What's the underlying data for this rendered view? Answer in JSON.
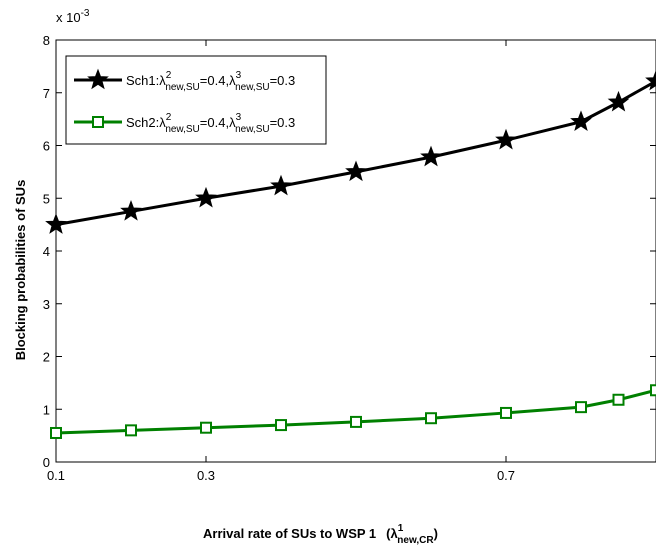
{
  "chart_data": {
    "type": "line",
    "xlabel_main": "Arrival rate of SUs to WSP 1",
    "xlabel_symbol": "λ",
    "xlabel_sup": "1",
    "xlabel_sub": "new,CR",
    "ylabel": "Blocking probabilities of SUs",
    "y_multiplier": "x 10",
    "y_multiplier_exp": "-3",
    "xlim": [
      0.1,
      0.9
    ],
    "ylim": [
      0,
      8
    ],
    "x_ticks": [
      0.1,
      0.3,
      0.7
    ],
    "x_tick_labels": [
      "0.1",
      "0.3",
      "0.7"
    ],
    "y_ticks": [
      0,
      1,
      2,
      3,
      4,
      5,
      6,
      7,
      8
    ],
    "y_tick_labels": [
      "0",
      "1",
      "2",
      "3",
      "4",
      "5",
      "6",
      "7",
      "8"
    ],
    "x": [
      0.1,
      0.2,
      0.3,
      0.4,
      0.5,
      0.6,
      0.7,
      0.8,
      0.85,
      0.9
    ],
    "series": [
      {
        "name": "Sch1:λ²new,SU=0.4,λ³new,SU=0.3",
        "color": "#000000",
        "marker": "star",
        "values": [
          4.5,
          4.75,
          5.0,
          5.23,
          5.5,
          5.78,
          6.1,
          6.45,
          6.82,
          7.22
        ]
      },
      {
        "name": "Sch2:λ²new,SU=0.4,λ³new,SU=0.3",
        "color": "#008000",
        "marker": "square",
        "values": [
          0.55,
          0.6,
          0.65,
          0.7,
          0.76,
          0.83,
          0.93,
          1.04,
          1.18,
          1.36
        ]
      }
    ],
    "legend": {
      "position": "top-left",
      "entries": [
        {
          "prefix": "Sch1:",
          "sym1": "λ",
          "sup1": "2",
          "sub1": "new,SU",
          "val1": "=0.4,",
          "sym2": "λ",
          "sup2": "3",
          "sub2": "new,SU",
          "val2": "=0.3"
        },
        {
          "prefix": "Sch2:",
          "sym1": "λ",
          "sup1": "2",
          "sub1": "new,SU",
          "val1": "=0.4,",
          "sym2": "λ",
          "sup2": "3",
          "sub2": "new,SU",
          "val2": "=0.3"
        }
      ]
    },
    "grid": false
  }
}
